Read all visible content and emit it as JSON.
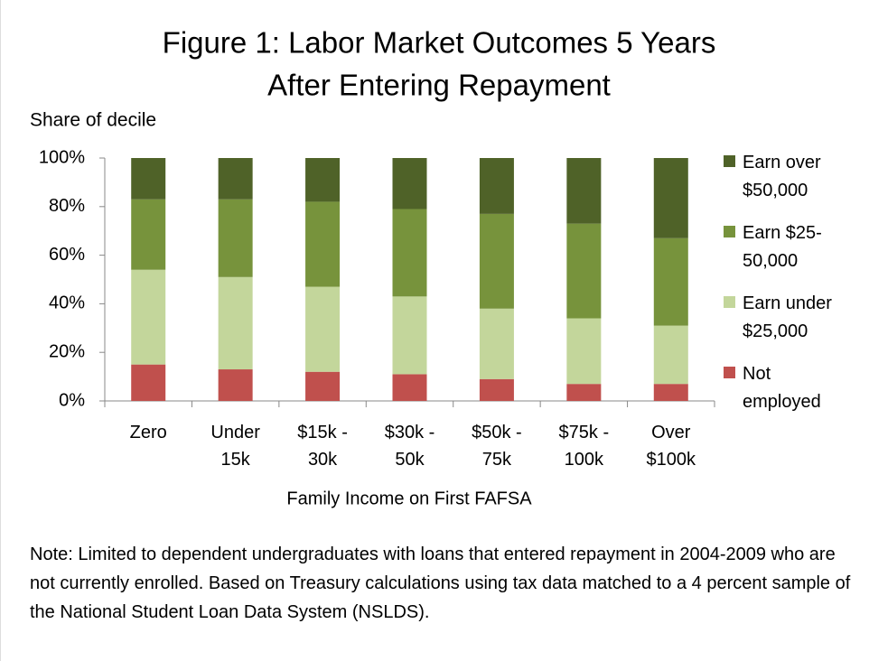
{
  "chart_data": {
    "type": "stacked_bar",
    "title": [
      "Figure 1: Labor Market Outcomes 5 Years",
      "After Entering Repayment"
    ],
    "y_axis_label": "Share of decile",
    "x_axis_label": "Family Income on First FAFSA",
    "categories": [
      [
        "Zero"
      ],
      [
        "Under",
        "15k"
      ],
      [
        "$15k -",
        "30k"
      ],
      [
        "$30k -",
        "50k"
      ],
      [
        "$50k -",
        "75k"
      ],
      [
        "$75k -",
        "100k"
      ],
      [
        "Over",
        "$100k"
      ]
    ],
    "series": [
      {
        "name": "Not employed",
        "color": "#c0504d",
        "values": [
          15,
          13,
          12,
          11,
          9,
          7,
          7
        ]
      },
      {
        "name": "Earn under $25,000",
        "color": "#c3d69b",
        "values": [
          39,
          38,
          35,
          32,
          29,
          27,
          24
        ]
      },
      {
        "name": "Earn $25-50,000",
        "color": "#77933c",
        "values": [
          29,
          32,
          35,
          36,
          39,
          39,
          36
        ]
      },
      {
        "name": "Earn over $50,000",
        "color": "#4f6228",
        "values": [
          17,
          17,
          18,
          21,
          23,
          27,
          33
        ]
      }
    ],
    "ylim": [
      0,
      100
    ],
    "yticks": [
      {
        "value": 0,
        "label": "0%"
      },
      {
        "value": 20,
        "label": "20%"
      },
      {
        "value": 40,
        "label": "40%"
      },
      {
        "value": 60,
        "label": "60%"
      },
      {
        "value": 80,
        "label": "80%"
      },
      {
        "value": 100,
        "label": "100%"
      }
    ],
    "grid": false,
    "legend": "right",
    "note": "Note: Limited to dependent undergraduates with loans that entered repayment in 2004-2009 who are not currently enrolled. Based on Treasury calculations using tax data matched to a 4 percent sample of the National Student Loan Data System (NSLDS)."
  }
}
